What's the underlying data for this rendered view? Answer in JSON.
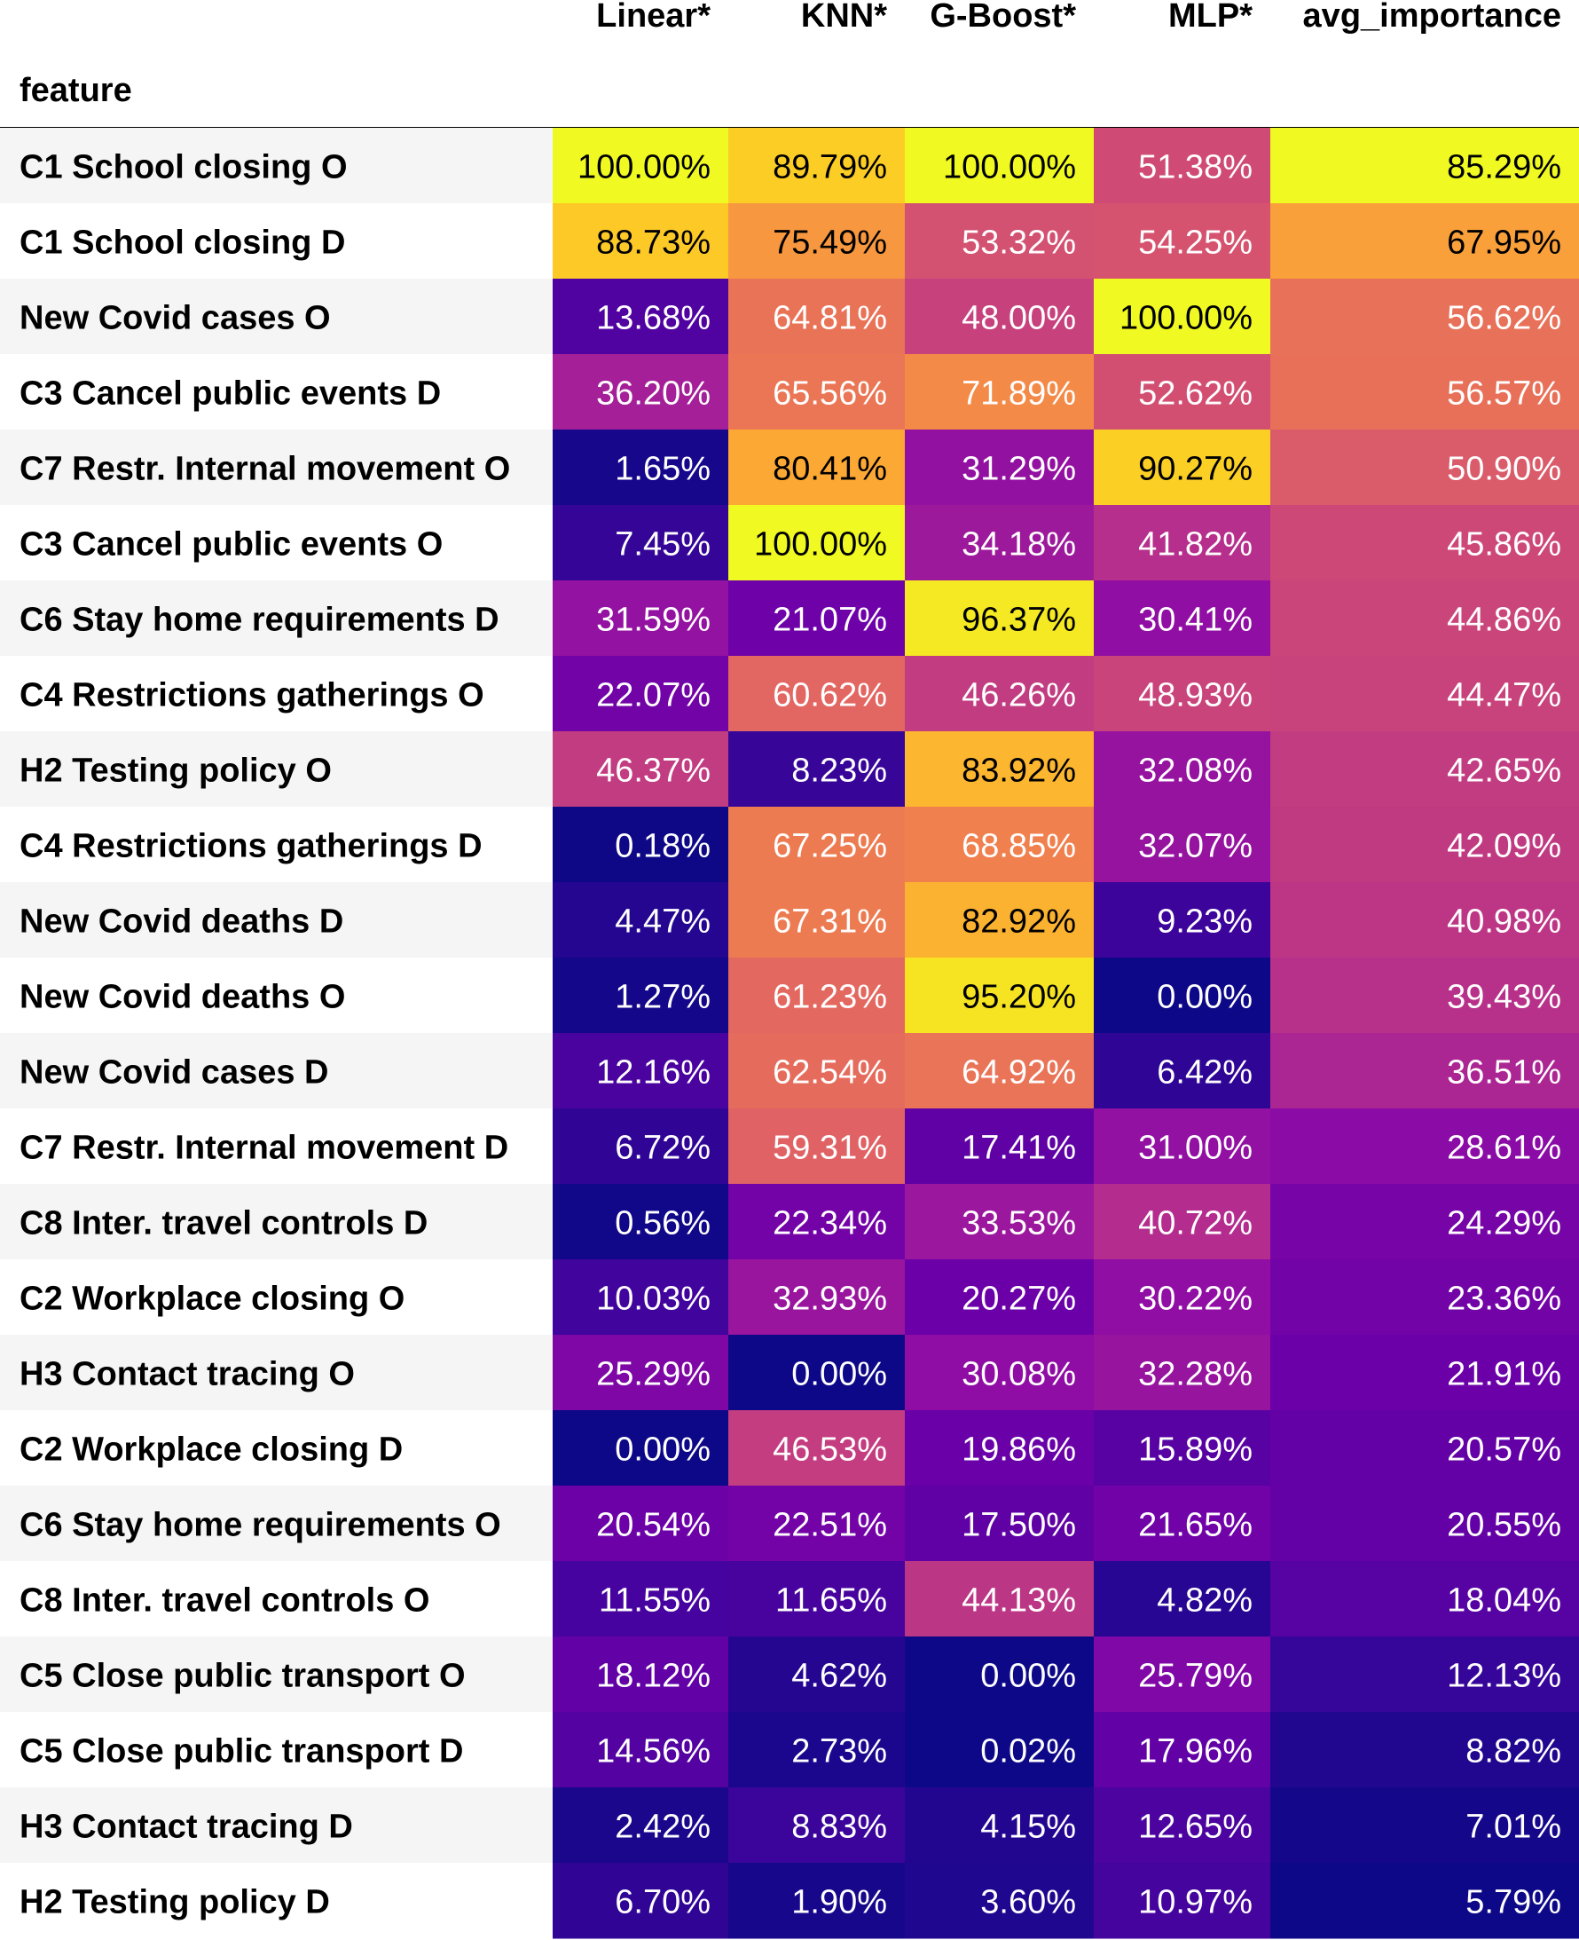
{
  "chart_data": {
    "type": "heatmap",
    "title": "",
    "index_label": "feature",
    "columns": [
      "Linear*",
      "KNN*",
      "G-Boost*",
      "MLP*",
      "avg_importance"
    ],
    "colormap": "plasma",
    "color_scale": "per-column min to max",
    "value_format": "percent, 2 decimals",
    "rows": [
      {
        "feature": "C1 School closing O",
        "values": [
          100.0,
          89.79,
          100.0,
          51.38,
          85.29
        ]
      },
      {
        "feature": "C1 School closing D",
        "values": [
          88.73,
          75.49,
          53.32,
          54.25,
          67.95
        ]
      },
      {
        "feature": "New Covid cases O",
        "values": [
          13.68,
          64.81,
          48.0,
          100.0,
          56.62
        ]
      },
      {
        "feature": "C3 Cancel public events D",
        "values": [
          36.2,
          65.56,
          71.89,
          52.62,
          56.57
        ]
      },
      {
        "feature": "C7 Restr. Internal movement O",
        "values": [
          1.65,
          80.41,
          31.29,
          90.27,
          50.9
        ]
      },
      {
        "feature": "C3 Cancel public events O",
        "values": [
          7.45,
          100.0,
          34.18,
          41.82,
          45.86
        ]
      },
      {
        "feature": "C6 Stay home requirements D",
        "values": [
          31.59,
          21.07,
          96.37,
          30.41,
          44.86
        ]
      },
      {
        "feature": "C4 Restrictions gatherings O",
        "values": [
          22.07,
          60.62,
          46.26,
          48.93,
          44.47
        ]
      },
      {
        "feature": "H2 Testing policy O",
        "values": [
          46.37,
          8.23,
          83.92,
          32.08,
          42.65
        ]
      },
      {
        "feature": "C4 Restrictions gatherings D",
        "values": [
          0.18,
          67.25,
          68.85,
          32.07,
          42.09
        ]
      },
      {
        "feature": "New Covid deaths D",
        "values": [
          4.47,
          67.31,
          82.92,
          9.23,
          40.98
        ]
      },
      {
        "feature": "New Covid deaths O",
        "values": [
          1.27,
          61.23,
          95.2,
          0.0,
          39.43
        ]
      },
      {
        "feature": "New Covid cases D",
        "values": [
          12.16,
          62.54,
          64.92,
          6.42,
          36.51
        ]
      },
      {
        "feature": "C7 Restr. Internal movement D",
        "values": [
          6.72,
          59.31,
          17.41,
          31.0,
          28.61
        ]
      },
      {
        "feature": "C8 Inter. travel controls D",
        "values": [
          0.56,
          22.34,
          33.53,
          40.72,
          24.29
        ]
      },
      {
        "feature": "C2 Workplace closing O",
        "values": [
          10.03,
          32.93,
          20.27,
          30.22,
          23.36
        ]
      },
      {
        "feature": "H3 Contact tracing O",
        "values": [
          25.29,
          0.0,
          30.08,
          32.28,
          21.91
        ]
      },
      {
        "feature": "C2 Workplace closing D",
        "values": [
          0.0,
          46.53,
          19.86,
          15.89,
          20.57
        ]
      },
      {
        "feature": "C6 Stay home requirements O",
        "values": [
          20.54,
          22.51,
          17.5,
          21.65,
          20.55
        ]
      },
      {
        "feature": "C8 Inter. travel controls O",
        "values": [
          11.55,
          11.65,
          44.13,
          4.82,
          18.04
        ]
      },
      {
        "feature": "C5 Close public transport O",
        "values": [
          18.12,
          4.62,
          0.0,
          25.79,
          12.13
        ]
      },
      {
        "feature": "C5 Close public transport D",
        "values": [
          14.56,
          2.73,
          0.02,
          17.96,
          8.82
        ]
      },
      {
        "feature": "H3 Contact tracing D",
        "values": [
          2.42,
          8.83,
          4.15,
          12.65,
          7.01
        ]
      },
      {
        "feature": "H2 Testing policy D",
        "values": [
          6.7,
          1.9,
          3.6,
          10.97,
          5.79
        ]
      }
    ]
  }
}
